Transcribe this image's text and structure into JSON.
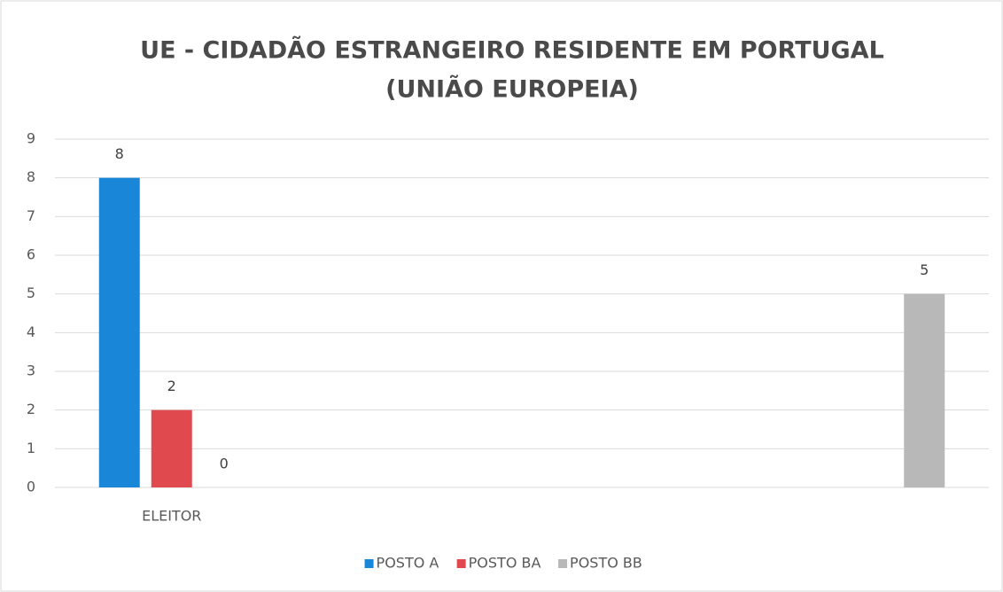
{
  "chart_data": {
    "type": "bar",
    "title": [
      "UE - CIDADÃO ESTRANGEIRO RESIDENTE EM PORTUGAL",
      "(UNIÃO EUROPEIA)"
    ],
    "categories": [
      "ELEITOR",
      null,
      null,
      null
    ],
    "series": [
      {
        "name": "POSTO A",
        "color": "#1a86d8",
        "values": [
          8,
          null,
          null,
          null
        ]
      },
      {
        "name": "POSTO BA",
        "color": "#e04a4f",
        "values": [
          2,
          null,
          null,
          null
        ]
      },
      {
        "name": "POSTO BB",
        "color": "#b8b8b8",
        "values": [
          0,
          null,
          null,
          5
        ]
      }
    ],
    "ylim": [
      0,
      9
    ],
    "yticks": [
      0,
      1,
      2,
      3,
      4,
      5,
      6,
      7,
      8,
      9
    ],
    "grid": true,
    "legend": "bottom"
  }
}
